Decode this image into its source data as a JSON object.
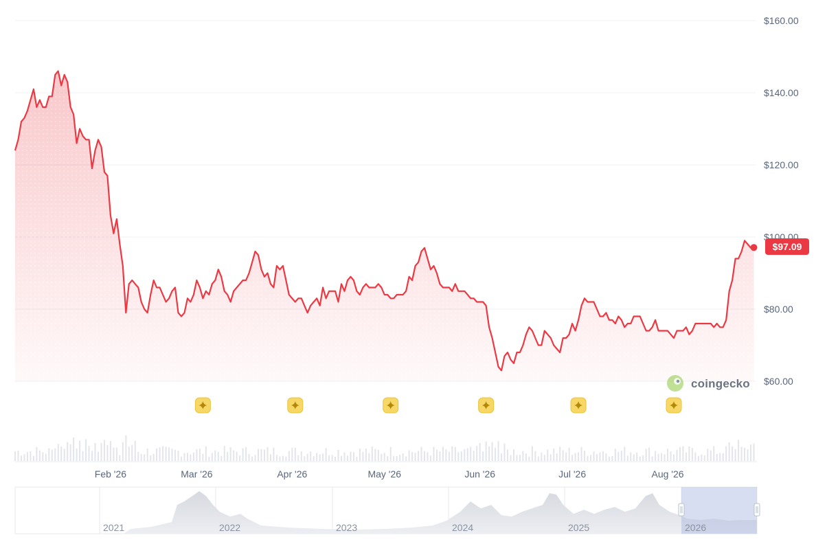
{
  "chart_data": {
    "type": "area",
    "title": "",
    "xlabel": "",
    "ylabel": "",
    "ylim": [
      60,
      160
    ],
    "y_ticks": [
      "$160.00",
      "$140.00",
      "$120.00",
      "$100.00",
      "$80.00",
      "$60.00"
    ],
    "y_tick_values": [
      160,
      140,
      120,
      100,
      80,
      60
    ],
    "x_tick_labels": [
      "Feb '26",
      "Mar '26",
      "Apr '26",
      "May '26",
      "Jun '26",
      "Jul '26",
      "Aug '26"
    ],
    "x_tick_days": [
      31,
      59,
      90,
      120,
      151,
      181,
      212
    ],
    "x_range_days": [
      0,
      241
    ],
    "x_note_origin": "2026-01-01",
    "current_price_label": "$97.09",
    "current_price": 97.09,
    "line_color": "#ea3943",
    "grid": true,
    "series": [
      {
        "name": "",
        "points": [
          [
            0,
            124
          ],
          [
            1,
            127
          ],
          [
            2,
            132
          ],
          [
            3,
            133
          ],
          [
            4,
            135
          ],
          [
            5,
            138
          ],
          [
            6,
            141
          ],
          [
            7,
            136
          ],
          [
            8,
            138
          ],
          [
            9,
            136
          ],
          [
            10,
            136
          ],
          [
            11,
            139
          ],
          [
            12,
            139
          ],
          [
            13,
            145
          ],
          [
            14,
            146
          ],
          [
            15,
            142
          ],
          [
            16,
            145
          ],
          [
            17,
            143
          ],
          [
            18,
            136
          ],
          [
            19,
            134
          ],
          [
            20,
            126
          ],
          [
            21,
            130
          ],
          [
            22,
            128
          ],
          [
            23,
            127
          ],
          [
            24,
            127
          ],
          [
            25,
            119
          ],
          [
            26,
            124
          ],
          [
            27,
            127
          ],
          [
            28,
            125
          ],
          [
            29,
            118
          ],
          [
            30,
            117
          ],
          [
            31,
            106
          ],
          [
            32,
            101
          ],
          [
            33,
            105
          ],
          [
            34,
            98
          ],
          [
            35,
            92
          ],
          [
            36,
            79
          ],
          [
            37,
            87
          ],
          [
            38,
            88
          ],
          [
            39,
            87
          ],
          [
            40,
            86
          ],
          [
            41,
            82
          ],
          [
            42,
            80
          ],
          [
            43,
            79
          ],
          [
            44,
            84
          ],
          [
            45,
            88
          ],
          [
            46,
            86
          ],
          [
            47,
            86
          ],
          [
            48,
            84
          ],
          [
            49,
            82
          ],
          [
            50,
            83
          ],
          [
            51,
            85
          ],
          [
            52,
            86
          ],
          [
            53,
            79
          ],
          [
            54,
            78
          ],
          [
            55,
            79
          ],
          [
            56,
            83
          ],
          [
            57,
            82
          ],
          [
            58,
            84
          ],
          [
            59,
            88
          ],
          [
            60,
            86
          ],
          [
            61,
            83
          ],
          [
            62,
            85
          ],
          [
            63,
            84
          ],
          [
            64,
            87
          ],
          [
            65,
            88
          ],
          [
            66,
            91
          ],
          [
            67,
            89
          ],
          [
            68,
            85
          ],
          [
            69,
            84
          ],
          [
            70,
            82
          ],
          [
            71,
            85
          ],
          [
            72,
            86
          ],
          [
            73,
            87
          ],
          [
            74,
            88
          ],
          [
            75,
            88
          ],
          [
            76,
            90
          ],
          [
            77,
            93
          ],
          [
            78,
            96
          ],
          [
            79,
            95
          ],
          [
            80,
            91
          ],
          [
            81,
            89
          ],
          [
            82,
            90
          ],
          [
            83,
            87
          ],
          [
            84,
            86
          ],
          [
            85,
            92
          ],
          [
            86,
            91
          ],
          [
            87,
            92
          ],
          [
            88,
            88
          ],
          [
            89,
            84
          ],
          [
            90,
            83
          ],
          [
            91,
            82
          ],
          [
            92,
            83
          ],
          [
            93,
            83
          ],
          [
            94,
            81
          ],
          [
            95,
            79
          ],
          [
            96,
            81
          ],
          [
            97,
            82
          ],
          [
            98,
            83
          ],
          [
            99,
            81
          ],
          [
            100,
            86
          ],
          [
            101,
            83
          ],
          [
            102,
            85
          ],
          [
            103,
            85
          ],
          [
            104,
            85
          ],
          [
            105,
            82
          ],
          [
            106,
            87
          ],
          [
            107,
            85
          ],
          [
            108,
            88
          ],
          [
            109,
            89
          ],
          [
            110,
            88
          ],
          [
            111,
            85
          ],
          [
            112,
            84
          ],
          [
            113,
            86
          ],
          [
            114,
            87
          ],
          [
            115,
            86
          ],
          [
            116,
            86
          ],
          [
            117,
            86
          ],
          [
            118,
            87
          ],
          [
            119,
            86
          ],
          [
            120,
            84
          ],
          [
            121,
            84
          ],
          [
            122,
            83
          ],
          [
            123,
            83
          ],
          [
            124,
            84
          ],
          [
            125,
            84
          ],
          [
            126,
            84
          ],
          [
            127,
            85
          ],
          [
            128,
            89
          ],
          [
            129,
            88
          ],
          [
            130,
            92
          ],
          [
            131,
            93
          ],
          [
            132,
            96
          ],
          [
            133,
            97
          ],
          [
            134,
            94
          ],
          [
            135,
            91
          ],
          [
            136,
            92
          ],
          [
            137,
            90
          ],
          [
            138,
            87
          ],
          [
            139,
            86
          ],
          [
            140,
            86
          ],
          [
            141,
            86
          ],
          [
            142,
            85
          ],
          [
            143,
            87
          ],
          [
            144,
            85
          ],
          [
            145,
            85
          ],
          [
            146,
            85
          ],
          [
            147,
            84
          ],
          [
            148,
            83
          ],
          [
            149,
            83
          ],
          [
            150,
            82
          ],
          [
            151,
            82
          ],
          [
            152,
            82
          ],
          [
            153,
            81
          ],
          [
            154,
            75
          ],
          [
            155,
            72
          ],
          [
            156,
            68
          ],
          [
            157,
            64
          ],
          [
            158,
            63
          ],
          [
            159,
            67
          ],
          [
            160,
            68
          ],
          [
            161,
            66
          ],
          [
            162,
            65
          ],
          [
            163,
            68
          ],
          [
            164,
            68
          ],
          [
            165,
            70
          ],
          [
            166,
            73
          ],
          [
            167,
            75
          ],
          [
            168,
            74
          ],
          [
            169,
            72
          ],
          [
            170,
            70
          ],
          [
            171,
            70
          ],
          [
            172,
            74
          ],
          [
            173,
            73
          ],
          [
            174,
            72
          ],
          [
            175,
            70
          ],
          [
            176,
            69
          ],
          [
            177,
            68
          ],
          [
            178,
            72
          ],
          [
            179,
            72
          ],
          [
            180,
            73
          ],
          [
            181,
            76
          ],
          [
            182,
            74
          ],
          [
            183,
            77
          ],
          [
            184,
            81
          ],
          [
            185,
            83
          ],
          [
            186,
            82
          ],
          [
            187,
            82
          ],
          [
            188,
            82
          ],
          [
            189,
            80
          ],
          [
            190,
            78
          ],
          [
            191,
            78
          ],
          [
            192,
            79
          ],
          [
            193,
            77
          ],
          [
            194,
            77
          ],
          [
            195,
            76
          ],
          [
            196,
            78
          ],
          [
            197,
            77
          ],
          [
            198,
            75
          ],
          [
            199,
            76
          ],
          [
            200,
            76
          ],
          [
            201,
            78
          ],
          [
            202,
            78
          ],
          [
            203,
            78
          ],
          [
            204,
            76
          ],
          [
            205,
            74
          ],
          [
            206,
            74
          ],
          [
            207,
            75
          ],
          [
            208,
            77
          ],
          [
            209,
            74
          ],
          [
            210,
            74
          ],
          [
            211,
            74
          ],
          [
            212,
            74
          ],
          [
            213,
            73
          ],
          [
            214,
            72
          ],
          [
            215,
            74
          ],
          [
            216,
            74
          ],
          [
            217,
            74
          ],
          [
            218,
            75
          ],
          [
            219,
            73
          ],
          [
            220,
            74
          ],
          [
            221,
            76
          ],
          [
            222,
            76
          ],
          [
            223,
            76
          ],
          [
            224,
            76
          ],
          [
            225,
            76
          ],
          [
            226,
            76
          ],
          [
            227,
            75
          ],
          [
            228,
            76
          ],
          [
            229,
            75
          ],
          [
            230,
            75
          ],
          [
            231,
            77
          ],
          [
            232,
            85
          ],
          [
            233,
            88
          ],
          [
            234,
            94
          ],
          [
            235,
            94
          ],
          [
            236,
            96
          ],
          [
            237,
            99
          ],
          [
            238,
            98
          ],
          [
            239,
            97
          ],
          [
            240,
            97
          ]
        ]
      }
    ],
    "event_marker_days": [
      61,
      91,
      122,
      153,
      183,
      214
    ],
    "brand_label": "coingecko",
    "navigator": {
      "year_labels": [
        "2021",
        "2022",
        "2023",
        "2024",
        "2025",
        "2026"
      ],
      "selected_range_label": "2026"
    }
  }
}
